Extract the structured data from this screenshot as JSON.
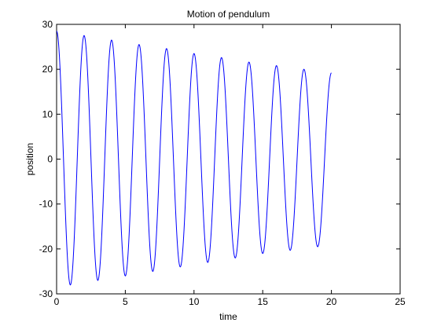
{
  "chart_data": {
    "type": "line",
    "title": "Motion of pendulum",
    "xlabel": "time",
    "ylabel": "position",
    "xlim": [
      0,
      25
    ],
    "ylim": [
      -30,
      30
    ],
    "xticks": [
      0,
      5,
      10,
      15,
      20,
      25
    ],
    "yticks": [
      -30,
      -20,
      -10,
      0,
      10,
      20,
      30
    ],
    "xtick_labels": [
      "0",
      "5",
      "10",
      "15",
      "20",
      "25"
    ],
    "ytick_labels": [
      "-30",
      "-20",
      "-10",
      "0",
      "10",
      "20",
      "30"
    ],
    "grid": false,
    "legend": "none",
    "series": [
      {
        "color": "#0000ff",
        "x": [
          0,
          1,
          2,
          3,
          4,
          5,
          6,
          7,
          8,
          9,
          10,
          11,
          12,
          13,
          14,
          15,
          16,
          17,
          18,
          19,
          20
        ],
        "y": [
          28.5,
          -28,
          27.5,
          -27,
          26.5,
          -26,
          25.5,
          -25,
          24.6,
          -24,
          23.5,
          -23,
          22.6,
          -22,
          21.6,
          -21,
          20.8,
          -20.3,
          20,
          -19.5,
          19.2
        ]
      }
    ]
  }
}
